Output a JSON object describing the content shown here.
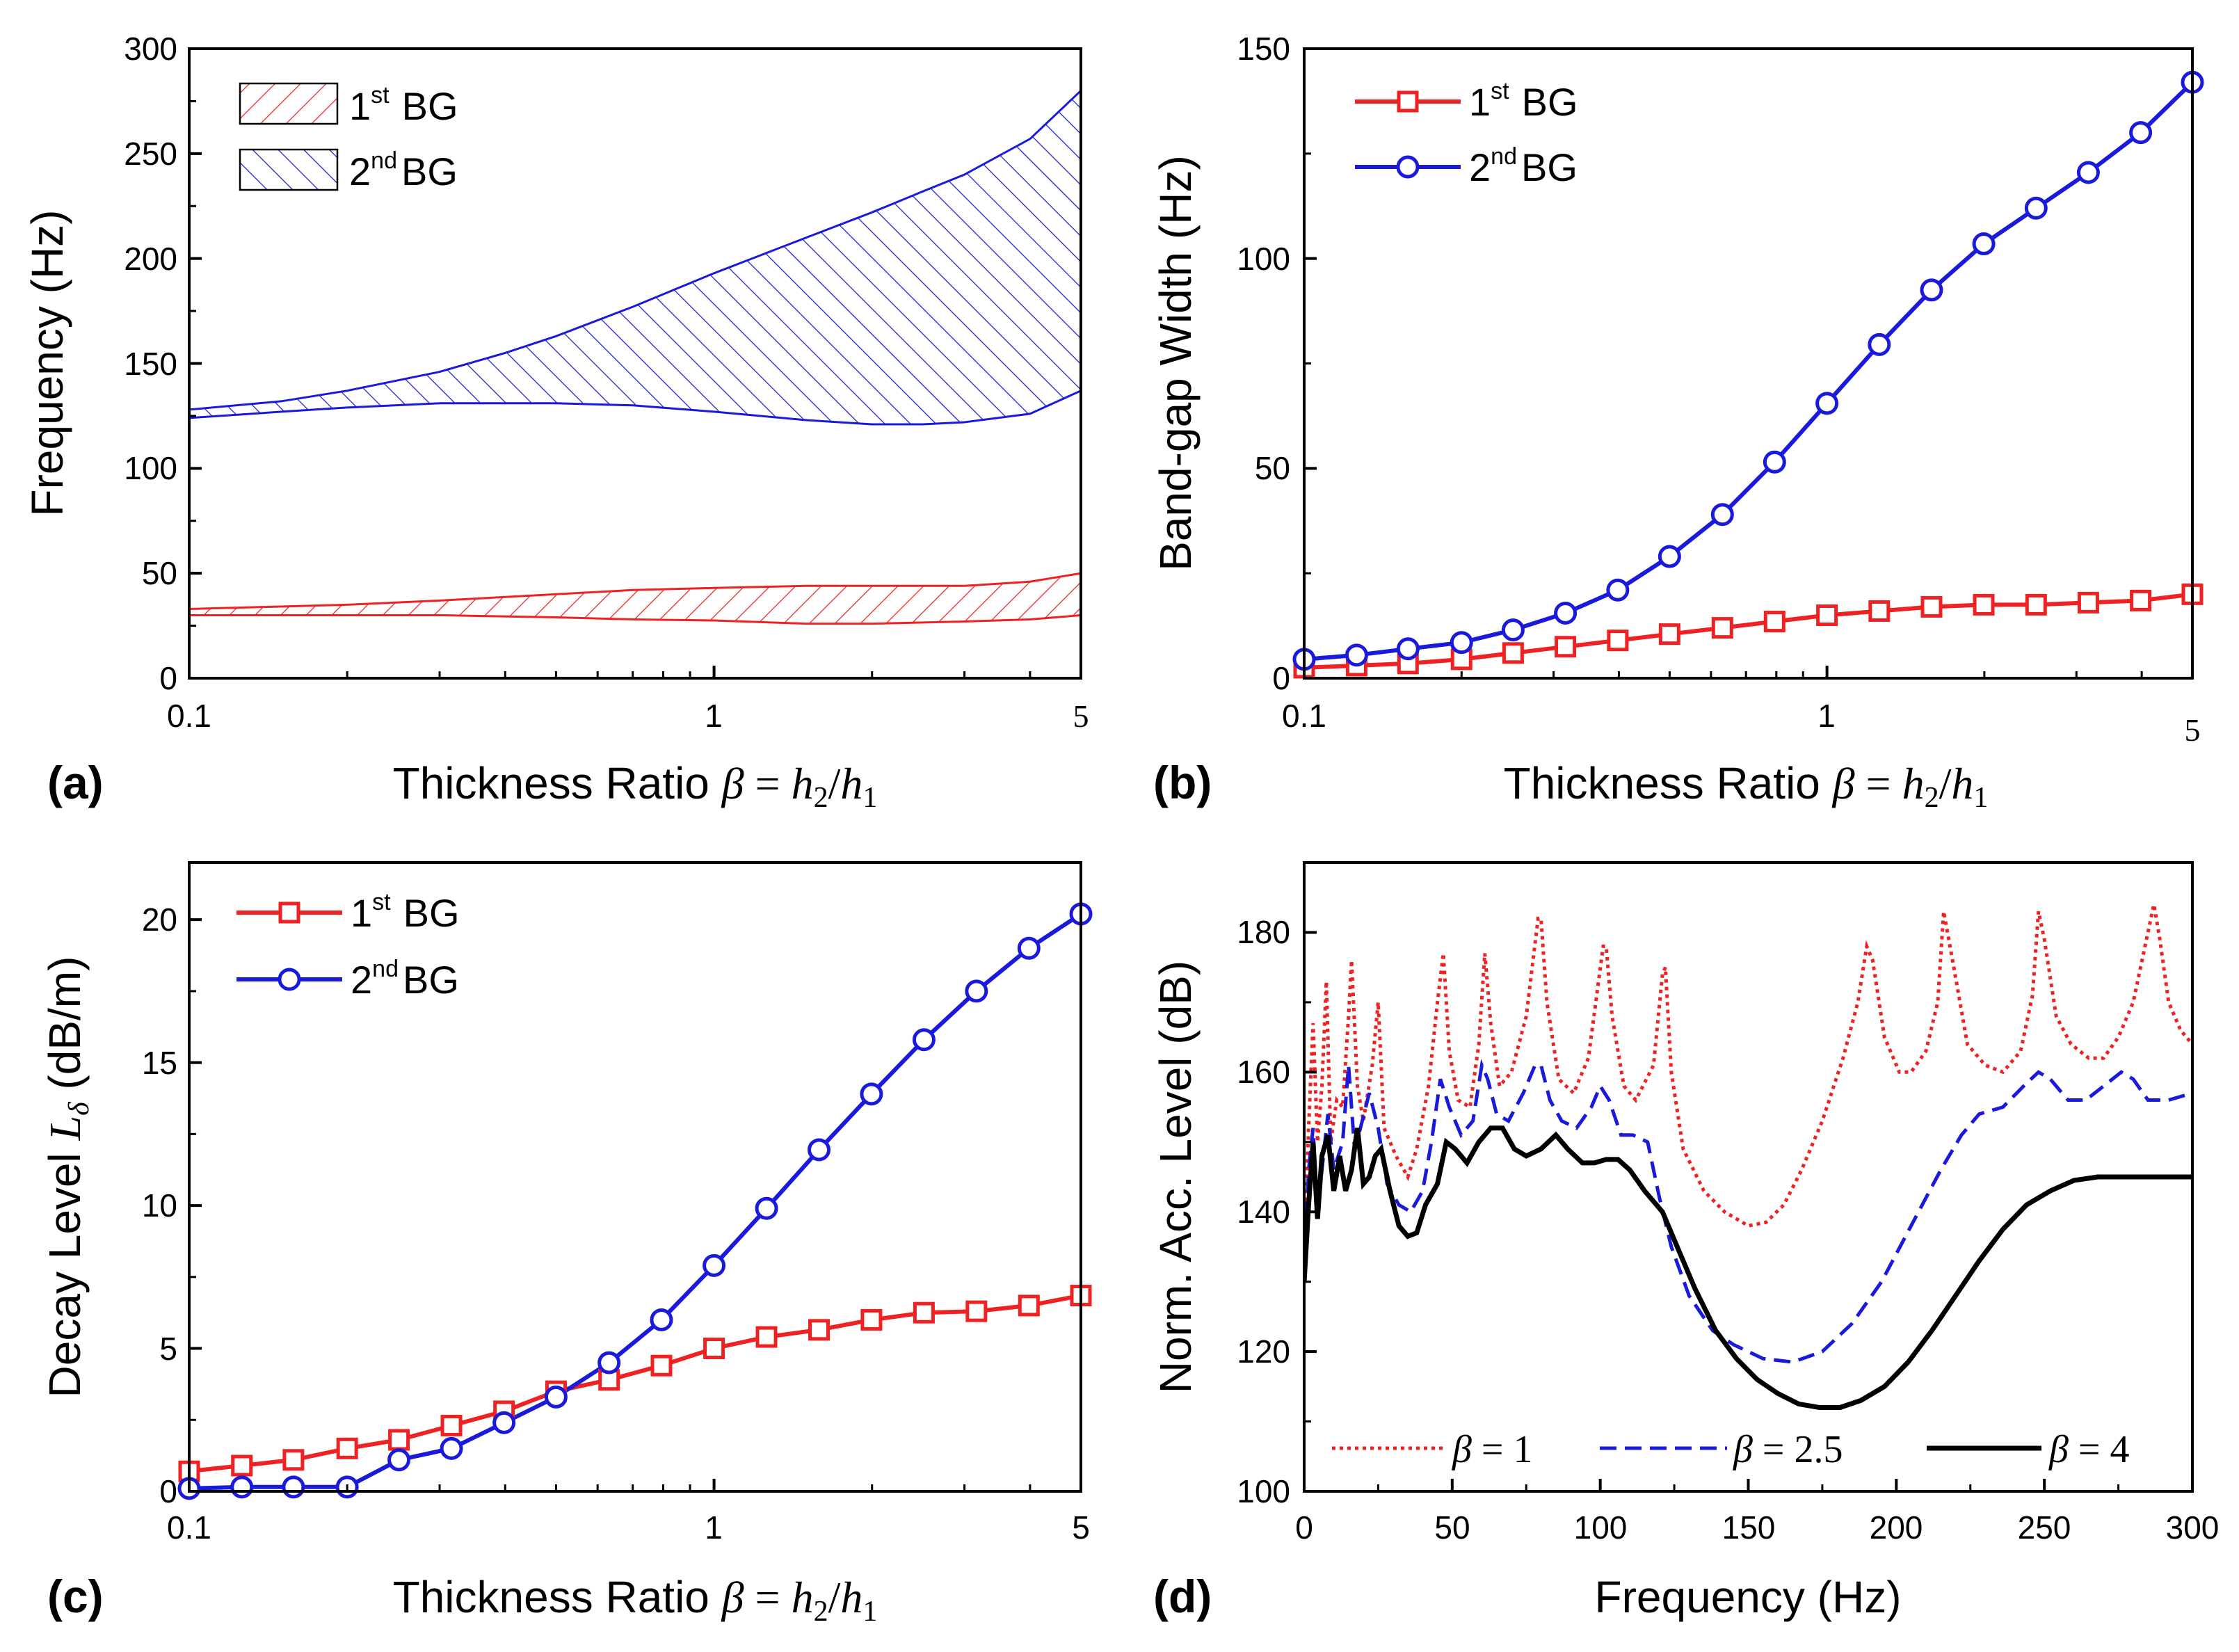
{
  "figure": {
    "sup_st": "st",
    "sup_nd": "nd"
  },
  "chart_data": [
    {
      "panel": "(a)",
      "type": "area",
      "xscale": "log",
      "xlim": [
        0.1,
        5
      ],
      "ylim": [
        0,
        300
      ],
      "xticks": [
        0.1,
        1,
        5
      ],
      "xtick_labels": [
        "0.1",
        "1",
        "5"
      ],
      "yticks": [
        0,
        50,
        100,
        150,
        200,
        250,
        300
      ],
      "ytick_labels": [
        "0",
        "50",
        "100",
        "150",
        "200",
        "250",
        "300"
      ],
      "xlabel": "Thickness Ratio",
      "xlabel_math": {
        "beta": "β",
        "eq": " = ",
        "h": "h",
        "s2": "2",
        "slash": "/",
        "s1": "1"
      },
      "ylabel": "Frequency (Hz)",
      "legend_position": "top-left",
      "series": [
        {
          "name": "1st BG",
          "label_main": "1",
          "label_sup": "st",
          "label_tail": "BG",
          "color": "#ee2222",
          "hatch": "forward",
          "x": [
            0.1,
            0.2,
            0.3,
            0.5,
            0.7,
            1,
            1.5,
            2,
            3,
            4,
            5
          ],
          "lower": [
            30,
            30,
            30,
            29,
            28,
            27.5,
            26,
            26,
            27,
            28,
            30
          ],
          "upper": [
            33,
            35,
            37,
            40,
            42,
            43,
            44,
            44,
            44,
            46,
            50
          ]
        },
        {
          "name": "2nd BG",
          "label_main": "2",
          "label_sup": "nd",
          "label_tail": "BG",
          "color": "#1a1adb",
          "hatch": "backward",
          "x": [
            0.1,
            0.15,
            0.2,
            0.3,
            0.4,
            0.5,
            0.7,
            1,
            1.5,
            2,
            2.5,
            3,
            4,
            5
          ],
          "lower": [
            124,
            127,
            129,
            131,
            131,
            131,
            130,
            127,
            123,
            121,
            121,
            122,
            126,
            137
          ],
          "upper": [
            128,
            132,
            137,
            146,
            155,
            163,
            177,
            193,
            210,
            222,
            232,
            240,
            257,
            280
          ]
        }
      ]
    },
    {
      "panel": "(b)",
      "type": "line",
      "xscale": "log",
      "xlim": [
        0.1,
        5
      ],
      "ylim": [
        0,
        150
      ],
      "xticks": [
        0.1,
        1,
        5
      ],
      "xtick_labels": [
        "0.1",
        "1",
        "5"
      ],
      "yticks": [
        0,
        50,
        100,
        150
      ],
      "ytick_labels": [
        "0",
        "50",
        "100",
        "150"
      ],
      "xlabel": "Thickness Ratio",
      "xlabel_math": {
        "beta": "β",
        "eq": " = ",
        "h": "h",
        "s2": "2",
        "slash": "/",
        "s1": "1"
      },
      "ylabel": "Band-gap Width (Hz)",
      "legend_position": "top-left",
      "x": [
        0.1,
        0.126,
        0.158,
        0.2,
        0.251,
        0.316,
        0.398,
        0.5,
        0.631,
        0.794,
        1,
        1.259,
        1.585,
        1.995,
        2.512,
        3.162,
        3.981,
        5
      ],
      "series": [
        {
          "name": "1st BG",
          "label_main": "1",
          "label_sup": "st",
          "label_tail": "BG",
          "color": "#ee2222",
          "marker": "square",
          "values": [
            2.5,
            3,
            3.5,
            4.5,
            6,
            7.5,
            9,
            10.5,
            12,
            13.5,
            15,
            16,
            17,
            17.5,
            17.5,
            18,
            18.5,
            20
          ]
        },
        {
          "name": "2nd BG",
          "label_main": "2",
          "label_sup": "nd",
          "label_tail": "BG",
          "color": "#1a1adb",
          "marker": "circle",
          "values": [
            4.5,
            5.5,
            7,
            8.5,
            11.5,
            15.5,
            21,
            29,
            39,
            51.5,
            65.5,
            79.5,
            92.5,
            103.5,
            112,
            120.5,
            130,
            142
          ]
        }
      ]
    },
    {
      "panel": "(c)",
      "type": "line",
      "xscale": "log",
      "xlim": [
        0.1,
        5
      ],
      "ylim": [
        0,
        22
      ],
      "xticks": [
        0.1,
        1,
        5
      ],
      "xtick_labels": [
        "0.1",
        "1",
        "5"
      ],
      "yticks": [
        0,
        5,
        10,
        15,
        20
      ],
      "ytick_labels": [
        "0",
        "5",
        "10",
        "15",
        "20"
      ],
      "xlabel": "Thickness Ratio",
      "xlabel_math": {
        "beta": "β",
        "eq": " = ",
        "h": "h",
        "s2": "2",
        "slash": "/",
        "s1": "1"
      },
      "ylabel": "Decay Level",
      "ylabel_sym": "L",
      "ylabel_sub": "δ",
      "ylabel_unit": "(dB/m)",
      "legend_position": "top-left",
      "x": [
        0.1,
        0.126,
        0.158,
        0.2,
        0.251,
        0.316,
        0.398,
        0.5,
        0.631,
        0.794,
        1,
        1.259,
        1.585,
        1.995,
        2.512,
        3.162,
        3.981,
        5
      ],
      "series": [
        {
          "name": "1st BG",
          "label_main": "1",
          "label_sup": "st",
          "label_tail": "BG",
          "color": "#ee2222",
          "marker": "square",
          "values": [
            0.7,
            0.9,
            1.1,
            1.5,
            1.8,
            2.3,
            2.8,
            3.5,
            3.9,
            4.4,
            5.0,
            5.4,
            5.65,
            6.0,
            6.25,
            6.3,
            6.5,
            6.85
          ]
        },
        {
          "name": "2nd BG",
          "label_main": "2",
          "label_sup": "nd",
          "label_tail": "BG",
          "color": "#1a1adb",
          "marker": "circle",
          "values": [
            0.1,
            0.15,
            0.15,
            0.15,
            1.1,
            1.5,
            2.4,
            3.3,
            4.5,
            6.0,
            7.9,
            9.9,
            11.95,
            13.9,
            15.8,
            17.5,
            19.0,
            20.2
          ]
        }
      ]
    },
    {
      "panel": "(d)",
      "type": "line",
      "xlim": [
        0,
        300
      ],
      "ylim": [
        100,
        190
      ],
      "xticks": [
        0,
        50,
        100,
        150,
        200,
        250,
        300
      ],
      "xtick_labels": [
        "0",
        "50",
        "100",
        "150",
        "200",
        "250",
        "300"
      ],
      "yticks": [
        100,
        120,
        140,
        160,
        180
      ],
      "ytick_labels": [
        "100",
        "120",
        "140",
        "160",
        "180"
      ],
      "xlabel": "Frequency (Hz)",
      "ylabel": "Norm. Acc. Level (dB)",
      "legend_position": "bottom",
      "series": [
        {
          "name": "β = 1",
          "label_main": "β",
          "label_eq": " = 1",
          "color": "#ee2222",
          "style": "dotted",
          "x": [
            0,
            1.5,
            3,
            4.5,
            6,
            7.5,
            9,
            11,
            13,
            15,
            16,
            18,
            20,
            23,
            25,
            27,
            31,
            35,
            38,
            42,
            45,
            47,
            49,
            52,
            56,
            59,
            61,
            63,
            66,
            70,
            75,
            79,
            80,
            82,
            86,
            91,
            96,
            101,
            102,
            104,
            108,
            112,
            118,
            121,
            122,
            124,
            128,
            135,
            142,
            150,
            156,
            162,
            168,
            175,
            182,
            187,
            190,
            192,
            196,
            201,
            205,
            210,
            214,
            216,
            219,
            224,
            230,
            236,
            242,
            246,
            248,
            250,
            254,
            259,
            265,
            270,
            275,
            280,
            285,
            287,
            289,
            292,
            296,
            300
          ],
          "values": [
            135,
            152,
            167,
            150,
            158,
            173,
            150,
            156,
            155,
            168,
            176,
            158,
            153,
            161,
            170,
            152,
            148,
            145,
            149,
            158,
            170,
            177,
            163,
            156,
            155,
            164,
            177,
            167,
            158,
            160,
            168,
            182,
            182,
            170,
            159,
            157,
            162,
            178,
            178,
            168,
            158,
            156,
            161,
            174,
            175,
            160,
            149,
            143,
            140,
            138,
            138.5,
            141,
            146,
            153,
            162,
            170,
            178,
            176,
            165,
            160,
            160,
            163,
            170,
            183,
            176,
            164,
            161,
            160,
            163,
            171,
            183,
            179,
            168,
            164,
            162,
            162,
            165,
            170,
            180,
            184,
            179,
            170,
            166,
            164
          ]
        },
        {
          "name": "β = 2.5",
          "label_main": "β",
          "label_eq": " = 2.5",
          "color": "#1a1adb",
          "style": "dashed",
          "x": [
            0,
            1.5,
            3,
            4.5,
            6,
            8,
            10,
            13,
            15,
            17,
            19,
            22,
            25,
            28,
            32,
            36,
            40,
            43,
            46,
            49,
            53,
            57,
            60,
            62,
            65,
            69,
            74,
            78,
            80,
            83,
            87,
            92,
            97,
            100,
            103,
            107,
            111,
            116,
            120,
            124,
            130,
            138,
            145,
            155,
            165,
            175,
            185,
            195,
            205,
            215,
            222,
            228,
            236,
            243,
            248,
            252,
            258,
            264,
            270,
            276,
            280,
            285,
            292,
            300
          ],
          "values": [
            132,
            146,
            152,
            139,
            146,
            154,
            146,
            150,
            161,
            149,
            152,
            157,
            152,
            144,
            141,
            140,
            143,
            150,
            159,
            155,
            151,
            153,
            161,
            159,
            154,
            153,
            157,
            161,
            161,
            156,
            153,
            152,
            155,
            158,
            156,
            151,
            151,
            150,
            142,
            135,
            128,
            123,
            121,
            119,
            118.5,
            120,
            124,
            130,
            138,
            146,
            151,
            154,
            155,
            158,
            160,
            159,
            156,
            156,
            158,
            160,
            159,
            156,
            156,
            157
          ]
        },
        {
          "name": "β = 4",
          "label_main": "β",
          "label_eq": " = 4",
          "color": "#000000",
          "style": "solid",
          "x": [
            0,
            1.5,
            3,
            4.5,
            6,
            8,
            10,
            12,
            14,
            16,
            18,
            20,
            22,
            24,
            26,
            29,
            32,
            35,
            38,
            41,
            45,
            48,
            51,
            55,
            59,
            63,
            67,
            71,
            75,
            80,
            85,
            89,
            94,
            98,
            102,
            106,
            110,
            115,
            121,
            126,
            132,
            139,
            146,
            153,
            160,
            167,
            174,
            181,
            188,
            196,
            204,
            212,
            220,
            228,
            236,
            244,
            252,
            260,
            268,
            276,
            284,
            292,
            300
          ],
          "values": [
            130,
            141,
            150,
            139,
            148,
            151,
            143,
            148,
            143,
            146,
            152,
            144,
            145,
            148,
            149,
            143,
            138,
            136.5,
            137,
            141,
            144,
            150,
            149,
            147,
            150,
            152,
            152,
            149,
            148,
            149,
            151,
            149,
            147,
            147,
            147.5,
            147.5,
            146,
            143,
            140,
            135,
            129,
            123,
            119,
            116,
            114,
            112.5,
            112,
            112,
            113,
            115,
            118.5,
            123,
            128,
            133,
            137.5,
            141,
            143,
            144.5,
            145,
            145,
            145,
            145,
            145
          ]
        }
      ]
    }
  ]
}
